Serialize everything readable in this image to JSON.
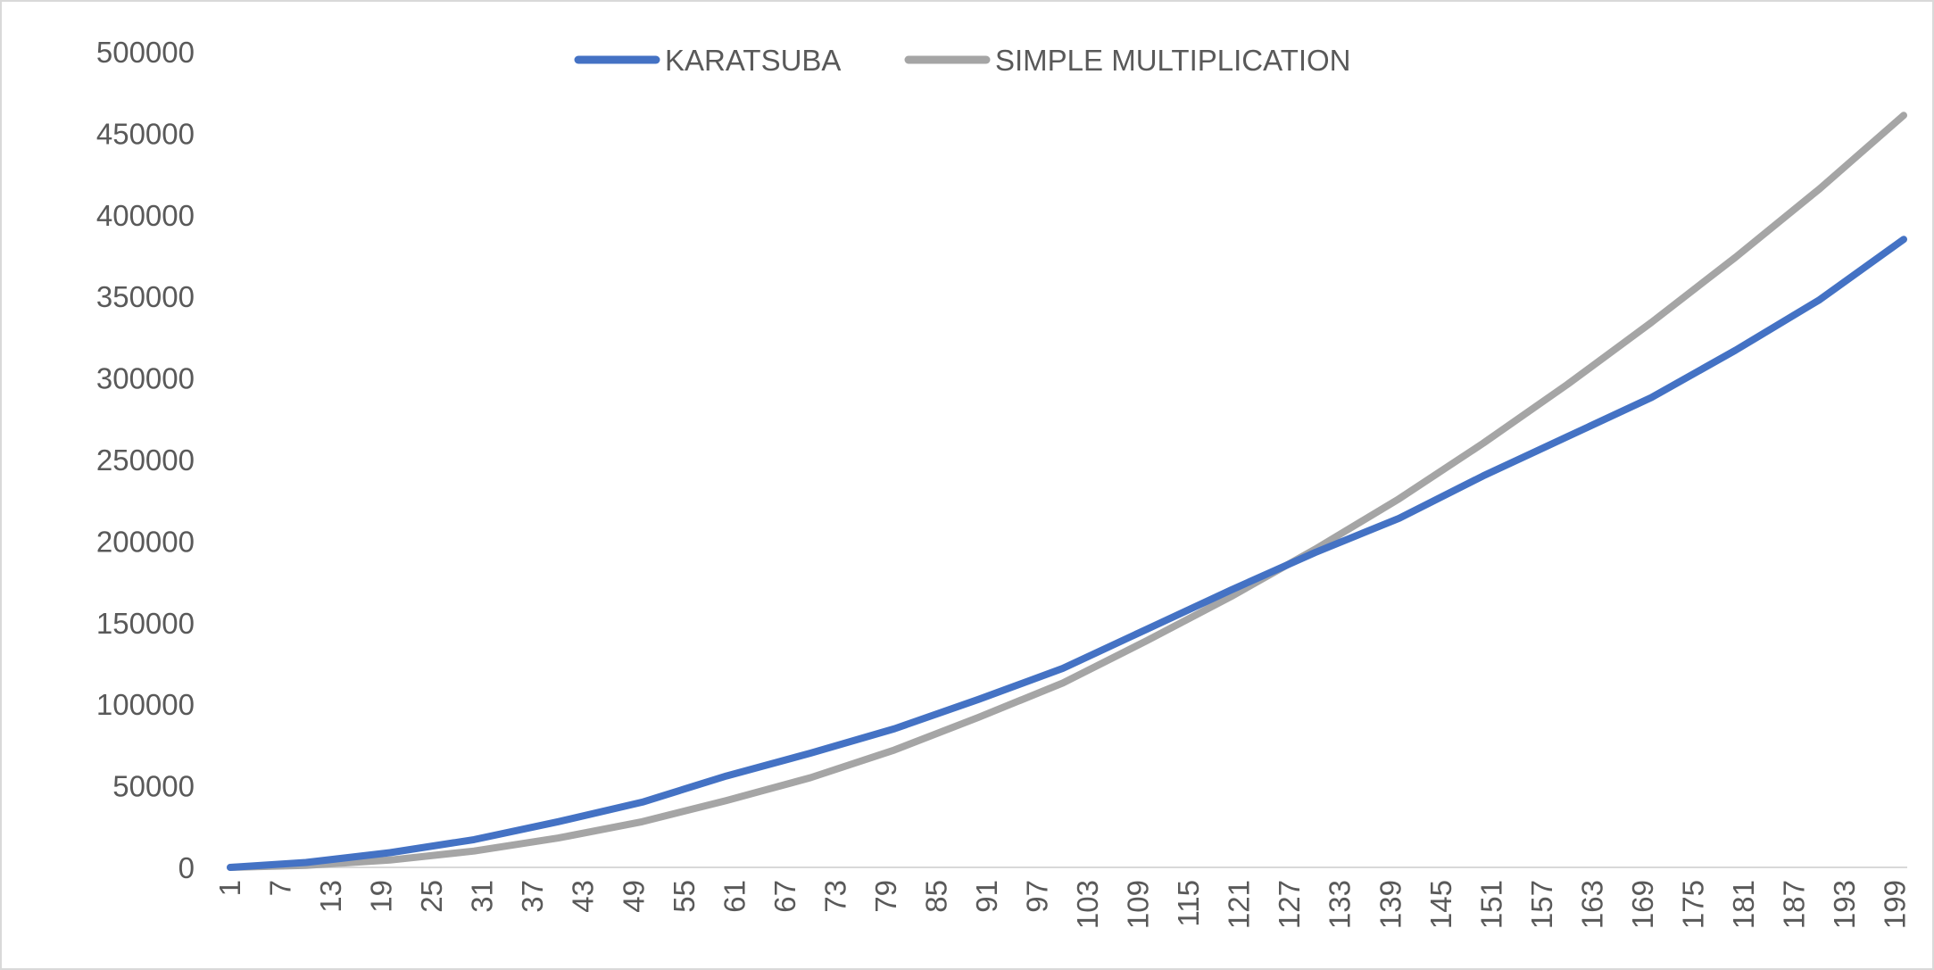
{
  "chart_data": {
    "type": "line",
    "title": "",
    "xlabel": "",
    "ylabel": "",
    "x_range": [
      1,
      200
    ],
    "x_tick_values": [
      1,
      7,
      13,
      19,
      25,
      31,
      37,
      43,
      49,
      55,
      61,
      67,
      73,
      79,
      85,
      91,
      97,
      103,
      109,
      115,
      121,
      127,
      133,
      139,
      145,
      151,
      157,
      163,
      169,
      175,
      181,
      187,
      193,
      199
    ],
    "ylim": [
      0,
      500000
    ],
    "y_ticks": [
      0,
      50000,
      100000,
      150000,
      200000,
      250000,
      300000,
      350000,
      400000,
      450000,
      500000
    ],
    "y_tick_labels": [
      "0",
      "50000",
      "100000",
      "150000",
      "200000",
      "250000",
      "300000",
      "350000",
      "400000",
      "450000",
      "500000"
    ],
    "grid": false,
    "legend_position": "top-center",
    "series": [
      {
        "name": "KARATSUBA",
        "color": "#4472C4",
        "x": [
          1,
          10,
          20,
          30,
          40,
          50,
          60,
          70,
          80,
          90,
          100,
          110,
          120,
          130,
          140,
          150,
          160,
          170,
          180,
          190,
          200
        ],
        "values": [
          0,
          3000,
          9000,
          17000,
          28000,
          40000,
          56000,
          70000,
          85000,
          103000,
          122000,
          146000,
          170000,
          193000,
          214000,
          240000,
          264000,
          288000,
          317000,
          348000,
          385000
        ]
      },
      {
        "name": "SIMPLE MULTIPLICATION",
        "color": "#A5A5A5",
        "x": [
          1,
          10,
          20,
          30,
          40,
          50,
          60,
          70,
          80,
          90,
          100,
          110,
          120,
          130,
          140,
          150,
          160,
          170,
          180,
          190,
          200
        ],
        "values": [
          0,
          1200,
          4500,
          10000,
          18000,
          28000,
          41000,
          55000,
          72000,
          92000,
          113000,
          139000,
          166000,
          195000,
          226000,
          260000,
          296000,
          334000,
          374000,
          416000,
          461000
        ]
      }
    ]
  }
}
